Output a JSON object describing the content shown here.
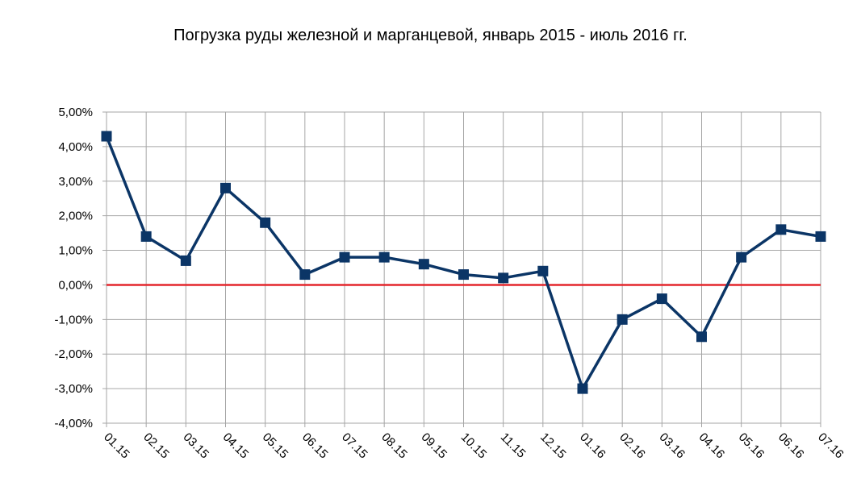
{
  "chart_data": {
    "type": "line",
    "title": "Погрузка руды железной и марганцевой, январь 2015 - июль 2016 гг.",
    "xlabel": "",
    "ylabel": "",
    "categories": [
      "01.15",
      "02.15",
      "03.15",
      "04.15",
      "05.15",
      "06.15",
      "07.15",
      "08.15",
      "09.15",
      "10.15",
      "11.15",
      "12.15",
      "01.16",
      "02.16",
      "03.16",
      "04.16",
      "05.16",
      "06.16",
      "07.16"
    ],
    "series": [
      {
        "values": [
          4.3,
          1.4,
          0.7,
          2.8,
          1.8,
          0.3,
          0.8,
          0.8,
          0.6,
          0.3,
          0.2,
          0.4,
          -3.0,
          -1.0,
          -0.4,
          -1.5,
          0.8,
          1.6,
          1.4
        ],
        "color": "#0B3566"
      }
    ],
    "y_ticks": [
      5,
      4,
      3,
      2,
      1,
      0,
      -1,
      -2,
      -3,
      -4
    ],
    "y_tick_labels": [
      "5,00%",
      "4,00%",
      "3,00%",
      "2,00%",
      "1,00%",
      "0,00%",
      "-1,00%",
      "-2,00%",
      "-3,00%",
      "-4,00%"
    ],
    "ylim": [
      -4,
      5
    ],
    "grid": true,
    "zero_line_color": "#E3262C",
    "grid_color": "#A6A6A6",
    "legend": "none"
  }
}
